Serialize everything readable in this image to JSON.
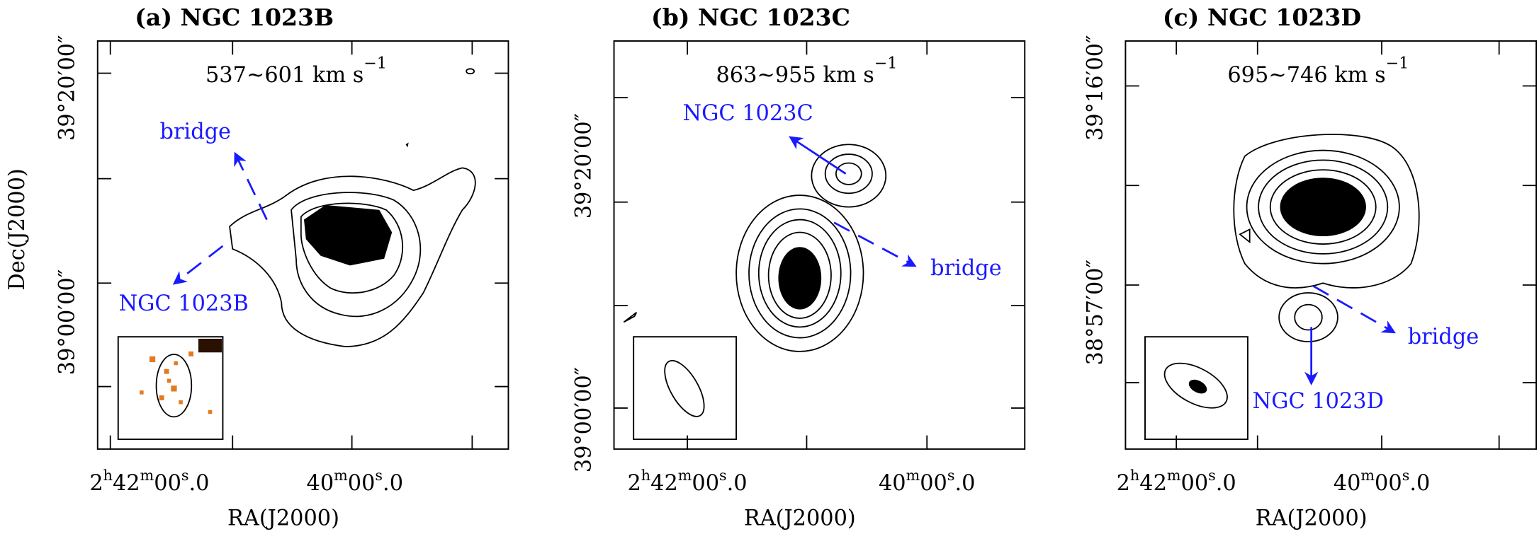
{
  "panels": [
    {
      "title": "(a) NGC 1023B",
      "velocity": "537~601 km s",
      "velocity_exp": "−1",
      "labels": [
        "bridge",
        "NGC 1023B"
      ],
      "dec_ticks": [
        "39°20′00″",
        "39°00′00″"
      ],
      "ra_ticks": [
        [
          "2",
          "h",
          "42",
          "m",
          "00",
          "s",
          ".0"
        ],
        [
          "40",
          "m",
          "00",
          "s",
          ".0"
        ]
      ],
      "ylabel": "Dec(J2000)",
      "xlabel": "RA(J2000)"
    },
    {
      "title": "(b) NGC 1023C",
      "velocity": "863~955 km s",
      "velocity_exp": "−1",
      "labels": [
        "NGC 1023C",
        "bridge"
      ],
      "dec_ticks": [
        "39°20′00″",
        "39°00′00″"
      ],
      "ra_ticks": [
        [
          "2",
          "h",
          "42",
          "m",
          "00",
          "s",
          ".0"
        ],
        [
          "40",
          "m",
          "00",
          "s",
          ".0"
        ]
      ],
      "xlabel": "RA(J2000)"
    },
    {
      "title": "(c) NGC 1023D",
      "velocity": "695~746 km s",
      "velocity_exp": "−1",
      "labels": [
        "bridge",
        "NGC 1023D"
      ],
      "dec_ticks": [
        "39°16′00″",
        "38°57′00″"
      ],
      "ra_ticks": [
        [
          "2",
          "h",
          "42",
          "m",
          "00",
          "s",
          ".0"
        ],
        [
          "40",
          "m",
          "00",
          "s",
          ".0"
        ]
      ],
      "xlabel": "RA(J2000)"
    }
  ]
}
